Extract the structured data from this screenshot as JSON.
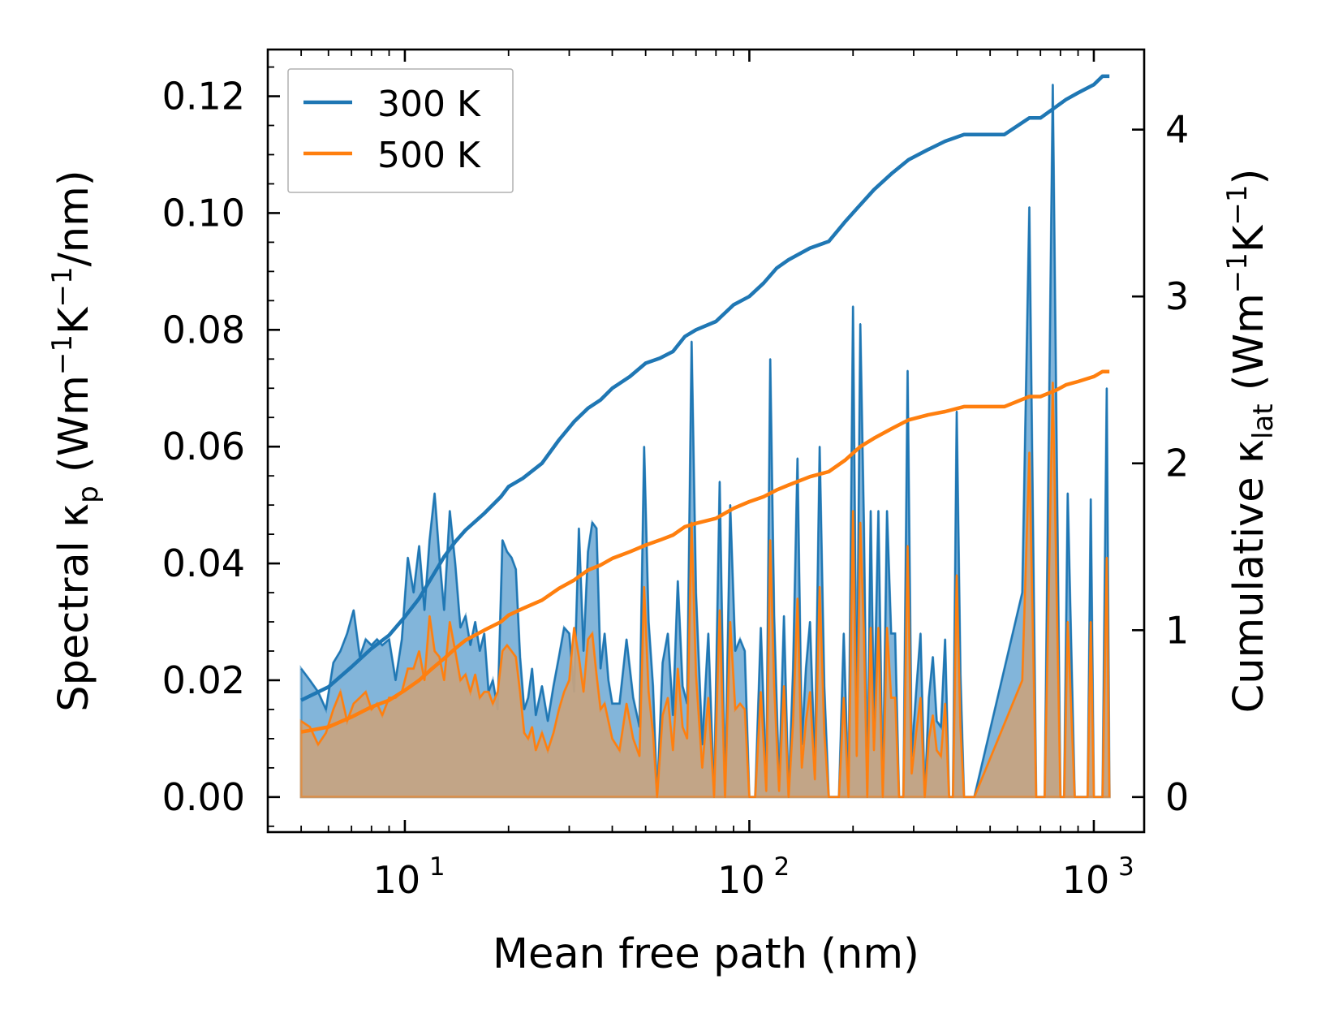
{
  "chart_data": {
    "type": "area",
    "xscale": "log",
    "xlim": [
      4.0,
      1400
    ],
    "xlabel": "Mean free path (nm)",
    "x_ticks": [
      {
        "value": 10,
        "label": "10",
        "exp": "1"
      },
      {
        "value": 100,
        "label": "10",
        "exp": "2"
      },
      {
        "value": 1000,
        "label": "10",
        "exp": "3"
      }
    ],
    "left_axis": {
      "label_parts": [
        "Spectral κ",
        "p",
        " (Wm",
        "−1",
        "K",
        "−1",
        "/nm)"
      ],
      "ylim": [
        -0.006,
        0.128
      ],
      "ticks": [
        0.0,
        0.02,
        0.04,
        0.06,
        0.08,
        0.1,
        0.12
      ],
      "tick_labels": [
        "0.00",
        "0.02",
        "0.04",
        "0.06",
        "0.08",
        "0.10",
        "0.12"
      ]
    },
    "right_axis": {
      "label_parts": [
        "Cumulative κ",
        "lat",
        " (Wm",
        "−1",
        "K",
        "−1",
        ")"
      ],
      "ylim": [
        -0.21,
        4.48
      ],
      "ticks": [
        0,
        1,
        2,
        3,
        4
      ],
      "tick_labels": [
        "0",
        "1",
        "2",
        "3",
        "4"
      ]
    },
    "legend": {
      "position": "top-left",
      "entries": [
        {
          "name": "300 K",
          "color": "#1f77b4"
        },
        {
          "name": "500 K",
          "color": "#ff7f0e"
        }
      ]
    },
    "series": [
      {
        "name": "300 K",
        "color": "#1f77b4",
        "spectral": {
          "x": [
            5.0,
            5.3,
            5.6,
            5.9,
            6.2,
            6.5,
            6.8,
            7.1,
            7.4,
            7.7,
            8.0,
            8.3,
            8.6,
            9.0,
            9.4,
            9.8,
            10.2,
            10.6,
            11.0,
            11.4,
            11.8,
            12.2,
            12.6,
            13.0,
            13.5,
            14.0,
            14.5,
            15.0,
            15.5,
            16.0,
            16.5,
            17.0,
            17.5,
            18.0,
            18.6,
            19.2,
            19.8,
            20.4,
            21.0,
            21.6,
            22.2,
            22.8,
            23.4,
            24.0,
            25.0,
            26.0,
            27.0,
            28.0,
            29.0,
            30.0,
            31.0,
            32.0,
            33.0,
            34.0,
            35.0,
            36.0,
            37.0,
            38.0,
            39.0,
            40.0,
            42.0,
            44.0,
            46.0,
            48.0,
            49.5,
            51.0,
            52.5,
            54.0,
            56.0,
            58.0,
            60.0,
            62.0,
            64.0,
            66.0,
            68.0,
            70.0,
            73.0,
            76.0,
            79.0,
            82.0,
            85.0,
            88.0,
            91.0,
            94.0,
            97.0,
            100,
            104,
            108,
            112,
            115,
            118,
            122,
            126,
            130,
            134,
            138,
            142,
            146,
            150,
            155,
            160,
            165,
            170,
            176,
            182,
            188,
            194,
            200,
            205,
            210,
            215,
            220,
            225,
            230,
            237,
            244,
            251,
            258,
            265,
            272,
            280,
            288,
            296,
            305,
            314,
            323,
            332,
            341,
            350,
            360,
            370,
            380,
            390,
            400,
            410,
            420,
            435,
            450,
            620,
            650,
            680,
            700,
            720,
            760,
            800,
            820,
            840,
            880,
            940,
            960,
            980,
            1000,
            1030,
            1060,
            1090,
            1110
          ],
          "y": [
            0.022,
            0.02,
            0.018,
            0.015,
            0.023,
            0.025,
            0.028,
            0.032,
            0.024,
            0.027,
            0.026,
            0.027,
            0.026,
            0.027,
            0.02,
            0.027,
            0.041,
            0.035,
            0.043,
            0.032,
            0.044,
            0.052,
            0.041,
            0.032,
            0.049,
            0.04,
            0.029,
            0.031,
            0.026,
            0.03,
            0.025,
            0.028,
            0.018,
            0.02,
            0.015,
            0.044,
            0.042,
            0.041,
            0.039,
            0.024,
            0.015,
            0.017,
            0.022,
            0.014,
            0.019,
            0.013,
            0.019,
            0.024,
            0.029,
            0.028,
            0.018,
            0.046,
            0.025,
            0.042,
            0.047,
            0.046,
            0.022,
            0.028,
            0.02,
            0.016,
            0.016,
            0.027,
            0.017,
            0.012,
            0.06,
            0.03,
            0.019,
            0.0,
            0.023,
            0.028,
            0.014,
            0.037,
            0.019,
            0.016,
            0.078,
            0.035,
            0.009,
            0.028,
            0.0,
            0.054,
            0.0,
            0.05,
            0.025,
            0.027,
            0.025,
            0.0,
            0.0,
            0.029,
            0.002,
            0.075,
            0.031,
            0.002,
            0.031,
            0.0,
            0.022,
            0.058,
            0.009,
            0.022,
            0.03,
            0.005,
            0.06,
            0.019,
            0.0,
            0.0,
            0.0,
            0.028,
            0.0,
            0.084,
            0.012,
            0.081,
            0.047,
            0.0,
            0.049,
            0.013,
            0.049,
            0.0,
            0.049,
            0.028,
            0.028,
            0.0,
            0.0,
            0.073,
            0.007,
            0.018,
            0.028,
            0.0,
            0.017,
            0.024,
            0.013,
            0.012,
            0.027,
            0.0,
            0.0,
            0.066,
            0.021,
            0.0,
            0.0,
            0.0,
            0.035,
            0.101,
            0.0,
            0.0,
            0.0,
            0.122,
            0.0,
            0.0,
            0.052,
            0.0,
            0.0,
            0.0,
            0.051,
            0.0,
            0.0,
            0.0,
            0.07,
            0.0
          ]
        },
        "cumulative": {
          "x": [
            5.0,
            6.0,
            7.0,
            8.0,
            9.0,
            10.0,
            11.0,
            12.0,
            13.0,
            14.0,
            15.0,
            17.0,
            19.0,
            20.0,
            22.0,
            25.0,
            28.0,
            31.0,
            34.0,
            37.0,
            40.0,
            45.0,
            50.0,
            55.0,
            60.0,
            65.0,
            70.0,
            80.0,
            90.0,
            100,
            110,
            120,
            130,
            150,
            170,
            190,
            210,
            230,
            260,
            290,
            330,
            370,
            420,
            550,
            650,
            700,
            780,
            830,
            900,
            1000,
            1060,
            1110
          ],
          "y": [
            0.58,
            0.66,
            0.78,
            0.89,
            0.97,
            1.08,
            1.19,
            1.32,
            1.44,
            1.53,
            1.6,
            1.7,
            1.8,
            1.86,
            1.91,
            2.0,
            2.14,
            2.25,
            2.33,
            2.38,
            2.45,
            2.52,
            2.6,
            2.63,
            2.67,
            2.76,
            2.8,
            2.85,
            2.95,
            3.0,
            3.08,
            3.17,
            3.22,
            3.29,
            3.33,
            3.45,
            3.55,
            3.64,
            3.74,
            3.82,
            3.88,
            3.93,
            3.97,
            3.97,
            4.07,
            4.07,
            4.14,
            4.18,
            4.22,
            4.27,
            4.32,
            4.32
          ]
        }
      },
      {
        "name": "500 K",
        "color": "#ff7f0e",
        "spectral": {
          "x": [
            5.0,
            5.3,
            5.6,
            5.9,
            6.2,
            6.5,
            6.8,
            7.1,
            7.4,
            7.7,
            8.0,
            8.3,
            8.6,
            9.0,
            9.4,
            9.8,
            10.2,
            10.6,
            11.0,
            11.4,
            11.8,
            12.2,
            12.6,
            13.0,
            13.5,
            14.0,
            14.5,
            15.0,
            15.5,
            16.0,
            16.5,
            17.0,
            17.5,
            18.0,
            18.6,
            19.2,
            19.8,
            20.4,
            21.0,
            21.6,
            22.2,
            22.8,
            23.4,
            24.0,
            25.0,
            26.0,
            27.0,
            28.0,
            29.0,
            30.0,
            31.0,
            32.0,
            33.0,
            34.0,
            35.0,
            36.0,
            37.0,
            38.0,
            39.0,
            40.0,
            42.0,
            44.0,
            46.0,
            48.0,
            49.5,
            51.0,
            52.5,
            54.0,
            56.0,
            58.0,
            60.0,
            62.0,
            64.0,
            66.0,
            68.0,
            70.0,
            73.0,
            76.0,
            79.0,
            82.0,
            85.0,
            88.0,
            91.0,
            94.0,
            97.0,
            100,
            104,
            108,
            112,
            115,
            118,
            122,
            126,
            130,
            134,
            138,
            142,
            146,
            150,
            155,
            160,
            165,
            170,
            176,
            182,
            188,
            194,
            200,
            205,
            210,
            215,
            220,
            225,
            230,
            237,
            244,
            251,
            258,
            265,
            272,
            280,
            288,
            296,
            305,
            314,
            323,
            332,
            341,
            350,
            360,
            370,
            380,
            390,
            400,
            410,
            420,
            435,
            450,
            620,
            650,
            680,
            700,
            720,
            760,
            800,
            820,
            840,
            880,
            940,
            960,
            980,
            1000,
            1030,
            1060,
            1090,
            1110
          ],
          "y": [
            0.013,
            0.012,
            0.009,
            0.011,
            0.015,
            0.018,
            0.013,
            0.016,
            0.017,
            0.018,
            0.015,
            0.016,
            0.014,
            0.017,
            0.017,
            0.018,
            0.022,
            0.022,
            0.025,
            0.02,
            0.031,
            0.025,
            0.024,
            0.02,
            0.03,
            0.025,
            0.02,
            0.021,
            0.018,
            0.021,
            0.017,
            0.018,
            0.018,
            0.016,
            0.018,
            0.025,
            0.026,
            0.025,
            0.024,
            0.018,
            0.011,
            0.01,
            0.012,
            0.008,
            0.011,
            0.008,
            0.011,
            0.015,
            0.018,
            0.02,
            0.029,
            0.024,
            0.018,
            0.027,
            0.028,
            0.021,
            0.015,
            0.016,
            0.013,
            0.01,
            0.008,
            0.016,
            0.01,
            0.007,
            0.036,
            0.018,
            0.011,
            0.0,
            0.014,
            0.017,
            0.008,
            0.022,
            0.012,
            0.01,
            0.047,
            0.021,
            0.005,
            0.017,
            0.0,
            0.032,
            0.0,
            0.03,
            0.015,
            0.016,
            0.015,
            0.0,
            0.0,
            0.018,
            0.001,
            0.044,
            0.019,
            0.001,
            0.019,
            0.0,
            0.013,
            0.034,
            0.005,
            0.013,
            0.018,
            0.003,
            0.036,
            0.011,
            0.0,
            0.0,
            0.0,
            0.017,
            0.0,
            0.049,
            0.007,
            0.047,
            0.028,
            0.0,
            0.029,
            0.008,
            0.029,
            0.0,
            0.029,
            0.017,
            0.017,
            0.0,
            0.0,
            0.043,
            0.004,
            0.011,
            0.017,
            0.0,
            0.01,
            0.014,
            0.008,
            0.007,
            0.016,
            0.0,
            0.0,
            0.038,
            0.012,
            0.0,
            0.0,
            0.0,
            0.02,
            0.059,
            0.0,
            0.0,
            0.0,
            0.071,
            0.0,
            0.0,
            0.03,
            0.0,
            0.0,
            0.0,
            0.03,
            0.0,
            0.0,
            0.0,
            0.041,
            0.0
          ]
        },
        "cumulative": {
          "x": [
            5.0,
            6.0,
            7.0,
            8.0,
            9.0,
            10.0,
            11.0,
            12.0,
            13.0,
            14.0,
            15.0,
            17.0,
            19.0,
            20.0,
            22.0,
            25.0,
            28.0,
            31.0,
            34.0,
            37.0,
            40.0,
            45.0,
            50.0,
            55.0,
            60.0,
            65.0,
            70.0,
            80.0,
            90.0,
            100,
            110,
            120,
            130,
            150,
            170,
            190,
            210,
            230,
            260,
            290,
            330,
            370,
            420,
            550,
            650,
            700,
            780,
            830,
            900,
            1000,
            1060,
            1110
          ],
          "y": [
            0.39,
            0.42,
            0.48,
            0.54,
            0.58,
            0.64,
            0.7,
            0.77,
            0.83,
            0.89,
            0.94,
            1.0,
            1.05,
            1.09,
            1.13,
            1.18,
            1.25,
            1.3,
            1.36,
            1.39,
            1.43,
            1.47,
            1.51,
            1.54,
            1.57,
            1.62,
            1.64,
            1.67,
            1.73,
            1.77,
            1.8,
            1.84,
            1.87,
            1.92,
            1.95,
            2.02,
            2.1,
            2.15,
            2.21,
            2.26,
            2.29,
            2.31,
            2.34,
            2.34,
            2.4,
            2.4,
            2.44,
            2.47,
            2.49,
            2.52,
            2.55,
            2.55
          ]
        }
      }
    ]
  }
}
